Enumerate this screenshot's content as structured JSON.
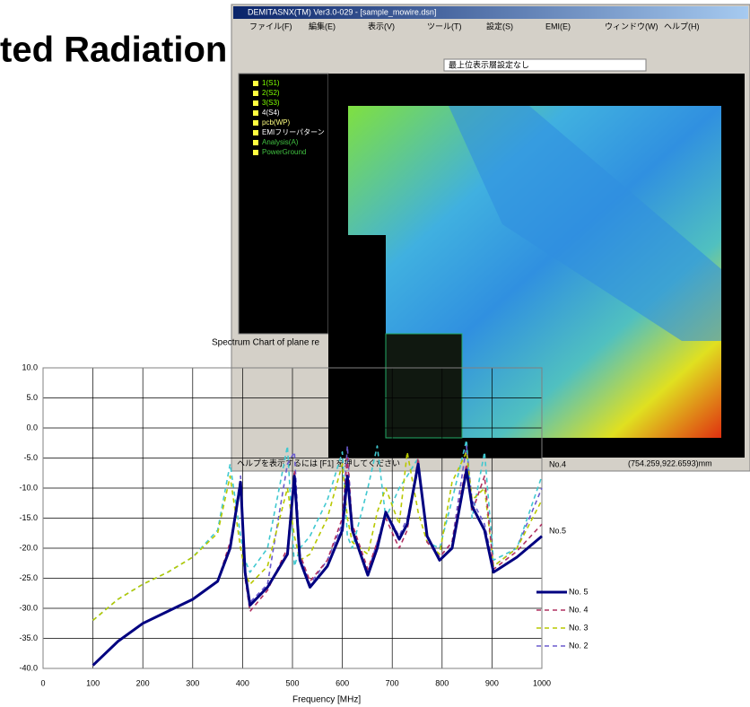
{
  "slide_title": "ted Radiation",
  "window": {
    "title": "DEMITASNX(TM) Ver3.0-029 - [sample_mowire.dsn]",
    "menu": [
      "ファイル(F)",
      "編集(E)",
      "表示(V)",
      "ツール(T)",
      "設定(S)",
      "EMI(E)",
      "ウィンドウ(W)",
      "ヘルプ(H)"
    ],
    "layer_select": "最上位表示層設定なし",
    "tree": [
      "1(S1)",
      "2(S2)",
      "3(S3)",
      "4(S4)",
      "pcb(WP)",
      "EMIフリーパターン",
      "Analysis(A)",
      "PowerGround"
    ],
    "status_help": "ヘルプを表示するには [F1] を押してください",
    "status_coord": "(754.259,922.6593)mm"
  },
  "chart_data": {
    "type": "line",
    "title": "Spectrum Chart of plane re",
    "x_label": "Frequency [MHz]",
    "x": [
      50,
      100,
      150,
      200,
      250,
      300,
      350,
      375,
      396,
      405,
      415,
      450,
      490,
      504,
      515,
      535,
      570,
      600,
      610,
      620,
      651,
      670,
      687,
      714,
      730,
      752,
      770,
      795,
      820,
      849,
      860,
      885,
      903,
      950,
      1000
    ],
    "series": [
      {
        "name": "No. 5",
        "color": "#000080",
        "dash": false,
        "values": [
          null,
          -39.5,
          -35.5,
          -32.5,
          -30.5,
          -28.5,
          -25.5,
          -20,
          -9,
          -24,
          -29.5,
          -26.5,
          -21,
          -8,
          -22,
          -26.5,
          -23,
          -17,
          -8,
          -17,
          -24.5,
          -20,
          -14,
          -18.5,
          -16,
          -6,
          -18,
          -22,
          -20,
          -7,
          -13,
          -17,
          -24,
          -21.5,
          -18
        ]
      },
      {
        "name": "No. 4",
        "color": "#b03060",
        "dash": true,
        "values": [
          null,
          -39.5,
          -35.5,
          -32.5,
          -30.5,
          -28.5,
          -25.5,
          -19,
          -10,
          -25,
          -30.5,
          -27,
          -20,
          -7,
          -21,
          -25.5,
          -22,
          -15,
          -5,
          -16,
          -23.5,
          -19,
          -15,
          -20,
          -17,
          -5,
          -19,
          -21.5,
          -19,
          -6,
          -14,
          -8,
          -23.5,
          -20.5,
          -16
        ]
      },
      {
        "name": "No. 3",
        "color": "#b8c800",
        "dash": true,
        "values": [
          null,
          -32,
          -28.5,
          -26,
          -24,
          -21.5,
          -17.5,
          -8,
          -20,
          -24,
          -26,
          -23,
          -10,
          -18,
          -22,
          -21,
          -15,
          -6,
          -15,
          -19,
          -21,
          -14,
          -10,
          -16,
          -4,
          -14,
          -19,
          -21,
          -9,
          -4,
          -12,
          -10,
          -23,
          -20,
          -12
        ]
      },
      {
        "name": "No. 2",
        "color": "#6a5acd",
        "dash": true,
        "values": [
          null,
          -39.5,
          -35.5,
          -32.5,
          -30.5,
          -28.5,
          -25.5,
          -20,
          -8,
          -24,
          -29,
          -26,
          -6,
          -4,
          -21,
          -26,
          -22,
          -16,
          -3,
          -17,
          -24,
          -19,
          -14,
          -18,
          -15,
          -7,
          -18,
          -21.5,
          -19,
          -3,
          -12,
          -16,
          -23,
          -20,
          -10
        ]
      },
      {
        "color": "#40c8d0",
        "dash": true,
        "values": [
          null,
          -32,
          -28.5,
          -26,
          -24,
          -21.5,
          -17,
          -6,
          -18,
          -22,
          -24,
          -20,
          -3,
          -23,
          -20,
          -18,
          -12,
          -4,
          -18,
          -20,
          -10,
          -3,
          -15,
          -10,
          -8,
          -5,
          -19,
          -20,
          -12,
          -2,
          -15,
          -4,
          -22,
          -20,
          -8
        ]
      }
    ],
    "annotations": [
      "No.4",
      "No.5"
    ],
    "xlim": [
      0,
      1000
    ],
    "ylim": [
      -40,
      10
    ],
    "xticks": [
      0,
      100,
      200,
      300,
      400,
      500,
      600,
      700,
      800,
      900,
      1000
    ],
    "yticks": [
      {
        "value": 10,
        "label": "10.0"
      },
      {
        "value": 5,
        "label": "5.0"
      },
      {
        "value": 0,
        "label": "0.0"
      },
      {
        "value": -5,
        "label": "-5.0"
      },
      {
        "value": -10,
        "label": "-10.0"
      },
      {
        "value": -15,
        "label": "-15.0"
      },
      {
        "value": -20,
        "label": "-20.0"
      },
      {
        "value": -25,
        "label": "-25.0"
      },
      {
        "value": -30,
        "label": "-30.0"
      },
      {
        "value": -35,
        "label": "-35.0"
      },
      {
        "value": -40,
        "label": "-40.0"
      }
    ],
    "grid": true
  }
}
